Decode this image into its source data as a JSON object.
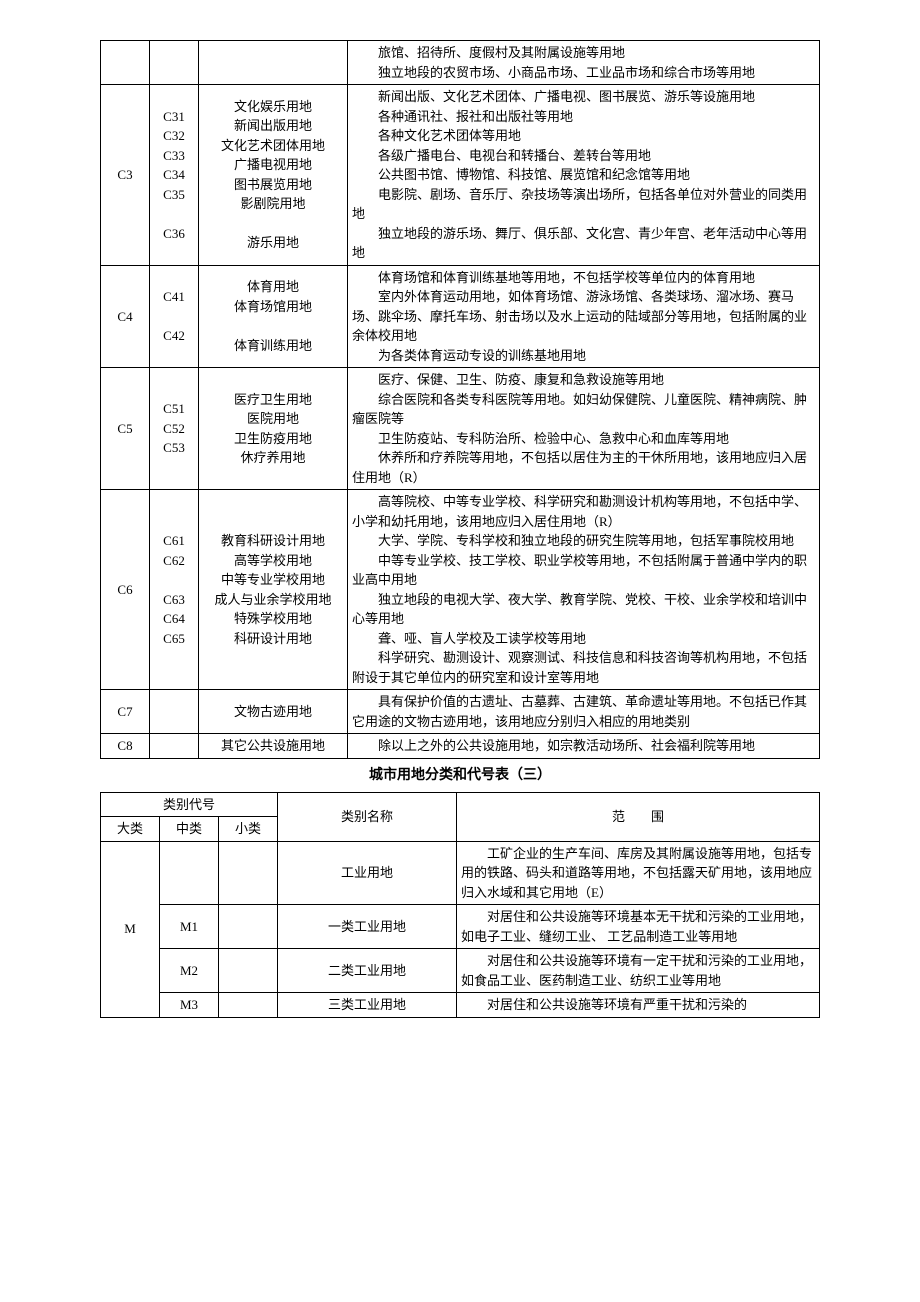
{
  "table1": {
    "rows": [
      {
        "c1": "",
        "c2": "",
        "name": "",
        "desc": "　　旅馆、招待所、度假村及其附属设施等用地\n　　独立地段的农贸市场、小商品市场、工业品市场和综合市场等用地"
      },
      {
        "c1": "C3",
        "c2": "C31\nC32\nC33\nC34\nC35\n\nC36",
        "name": "文化娱乐用地\n新闻出版用地\n文化艺术团体用地\n广播电视用地\n图书展览用地\n影剧院用地\n\n游乐用地",
        "desc": "　　新闻出版、文化艺术团体、广播电视、图书展览、游乐等设施用地\n　　各种通讯社、报社和出版社等用地\n　　各种文化艺术团体等用地\n　　各级广播电台、电视台和转播台、差转台等用地\n　　公共图书馆、博物馆、科技馆、展览馆和纪念馆等用地\n　　电影院、剧场、音乐厅、杂技场等演出场所，包括各单位对外营业的同类用地\n　　独立地段的游乐场、舞厅、俱乐部、文化宫、青少年宫、老年活动中心等用地"
      },
      {
        "c1": "C4",
        "c2": "C41\n\nC42",
        "name": "体育用地\n体育场馆用地\n\n体育训练用地",
        "desc": "　　体育场馆和体育训练基地等用地，不包括学校等单位内的体育用地\n　　室内外体育运动用地，如体育场馆、游泳场馆、各类球场、溜冰场、赛马场、跳伞场、摩托车场、射击场以及水上运动的陆域部分等用地，包括附属的业余体校用地\n　　为各类体育运动专设的训练基地用地"
      },
      {
        "c1": "C5",
        "c2": "C51\nC52\nC53",
        "name": "医疗卫生用地\n医院用地\n卫生防疫用地\n休疗养用地",
        "desc": "　　医疗、保健、卫生、防疫、康复和急救设施等用地\n　　综合医院和各类专科医院等用地。如妇幼保健院、儿童医院、精神病院、肿瘤医院等\n　　卫生防疫站、专科防治所、检验中心、急救中心和血库等用地\n　　休养所和疗养院等用地，不包括以居住为主的干休所用地，该用地应归入居住用地（R）"
      },
      {
        "c1": "C6",
        "c2": "C61\nC62\n\nC63\nC64\nC65",
        "name": "教育科研设计用地\n高等学校用地\n中等专业学校用地\n成人与业余学校用地\n特殊学校用地\n科研设计用地",
        "desc": "　　高等院校、中等专业学校、科学研究和勘测设计机构等用地，不包括中学、小学和幼托用地，该用地应归入居住用地（R）\n　　大学、学院、专科学校和独立地段的研究生院等用地，包括军事院校用地\n　　中等专业学校、技工学校、职业学校等用地，不包括附属于普通中学内的职业高中用地\n　　独立地段的电视大学、夜大学、教育学院、党校、干校、业余学校和培训中心等用地\n　　聋、哑、盲人学校及工读学校等用地\n　　科学研究、勘测设计、观察测试、科技信息和科技咨询等机构用地，不包括附设于其它单位内的研究室和设计室等用地"
      },
      {
        "c1": "C7",
        "c2": "",
        "name": "文物古迹用地",
        "desc": "　　具有保护价值的古遗址、古墓葬、古建筑、革命遗址等用地。不包括已作其它用途的文物古迹用地，该用地应分别归入相应的用地类别"
      },
      {
        "c1": "C8",
        "c2": "",
        "name": "其它公共设施用地",
        "desc": "　　除以上之外的公共设施用地，如宗教活动场所、社会福利院等用地"
      }
    ]
  },
  "title2": "城市用地分类和代号表（三）",
  "table2": {
    "header": {
      "codegroup": "类别代号",
      "major": "大类",
      "mid": "中类",
      "minor": "小类",
      "name": "类别名称",
      "scope": "范　　围"
    },
    "rows": [
      {
        "major_rowspan": 4,
        "major": "M",
        "mid": "",
        "minor": "",
        "name": "工业用地",
        "desc": "　　工矿企业的生产车间、库房及其附属设施等用地，包括专用的铁路、码头和道路等用地，不包括露天矿用地，该用地应归入水域和其它用地（E）"
      },
      {
        "mid": "M1",
        "minor": "",
        "name": "一类工业用地",
        "desc": "　　对居住和公共设施等环境基本无干扰和污染的工业用地，如电子工业、缝纫工业、 工艺品制造工业等用地"
      },
      {
        "mid": "M2",
        "minor": "",
        "name": "二类工业用地",
        "desc": "　　对居住和公共设施等环境有一定干扰和污染的工业用地，如食品工业、医药制造工业、纺织工业等用地"
      },
      {
        "mid": "M3",
        "minor": "",
        "name": "三类工业用地",
        "desc": "　　对居住和公共设施等环境有严重干扰和污染的"
      }
    ]
  }
}
